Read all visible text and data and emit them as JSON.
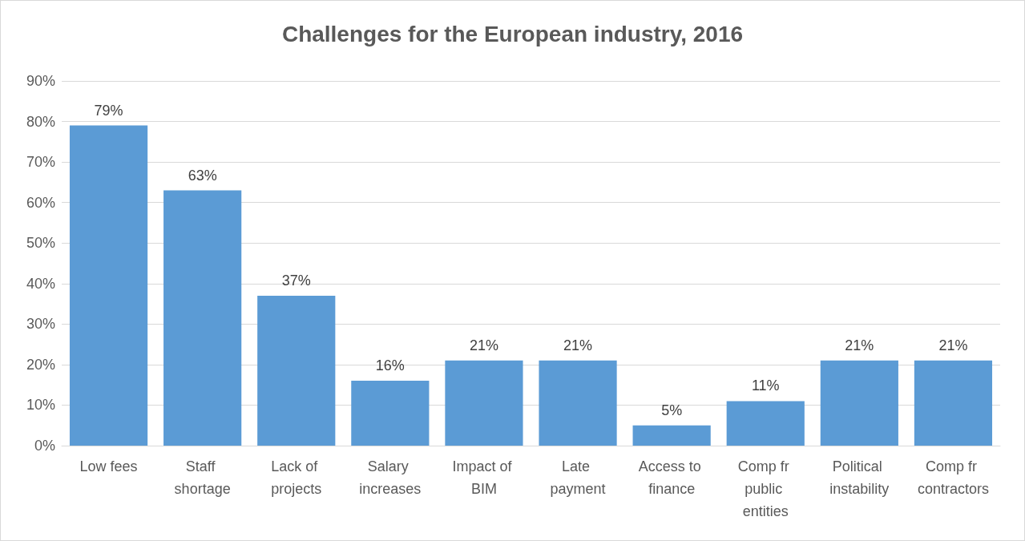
{
  "chart_data": {
    "type": "bar",
    "title": "Challenges for the European industry, 2016",
    "categories": [
      "Low fees",
      "Staff shortage",
      "Lack of projects",
      "Salary increases",
      "Impact of BIM",
      "Late payment",
      "Access to finance",
      "Comp fr public entities",
      "Political instability",
      "Comp fr contractors"
    ],
    "values": [
      79,
      63,
      37,
      16,
      21,
      21,
      5,
      11,
      21,
      21
    ],
    "color": "#5b9bd5",
    "ylim": [
      0,
      90
    ],
    "yticks": [
      {
        "value": 0,
        "label": "0%"
      },
      {
        "value": 10,
        "label": "10%"
      },
      {
        "value": 20,
        "label": "20%"
      },
      {
        "value": 30,
        "label": "30%"
      },
      {
        "value": 40,
        "label": "40%"
      },
      {
        "value": 50,
        "label": "50%"
      },
      {
        "value": 60,
        "label": "60%"
      },
      {
        "value": 70,
        "label": "70%"
      },
      {
        "value": 80,
        "label": "80%"
      },
      {
        "value": 90,
        "label": "90%"
      }
    ],
    "value_labels": [
      "79%",
      "63%",
      "37%",
      "16%",
      "21%",
      "21%",
      "5%",
      "11%",
      "21%",
      "21%"
    ],
    "grid": "y"
  }
}
